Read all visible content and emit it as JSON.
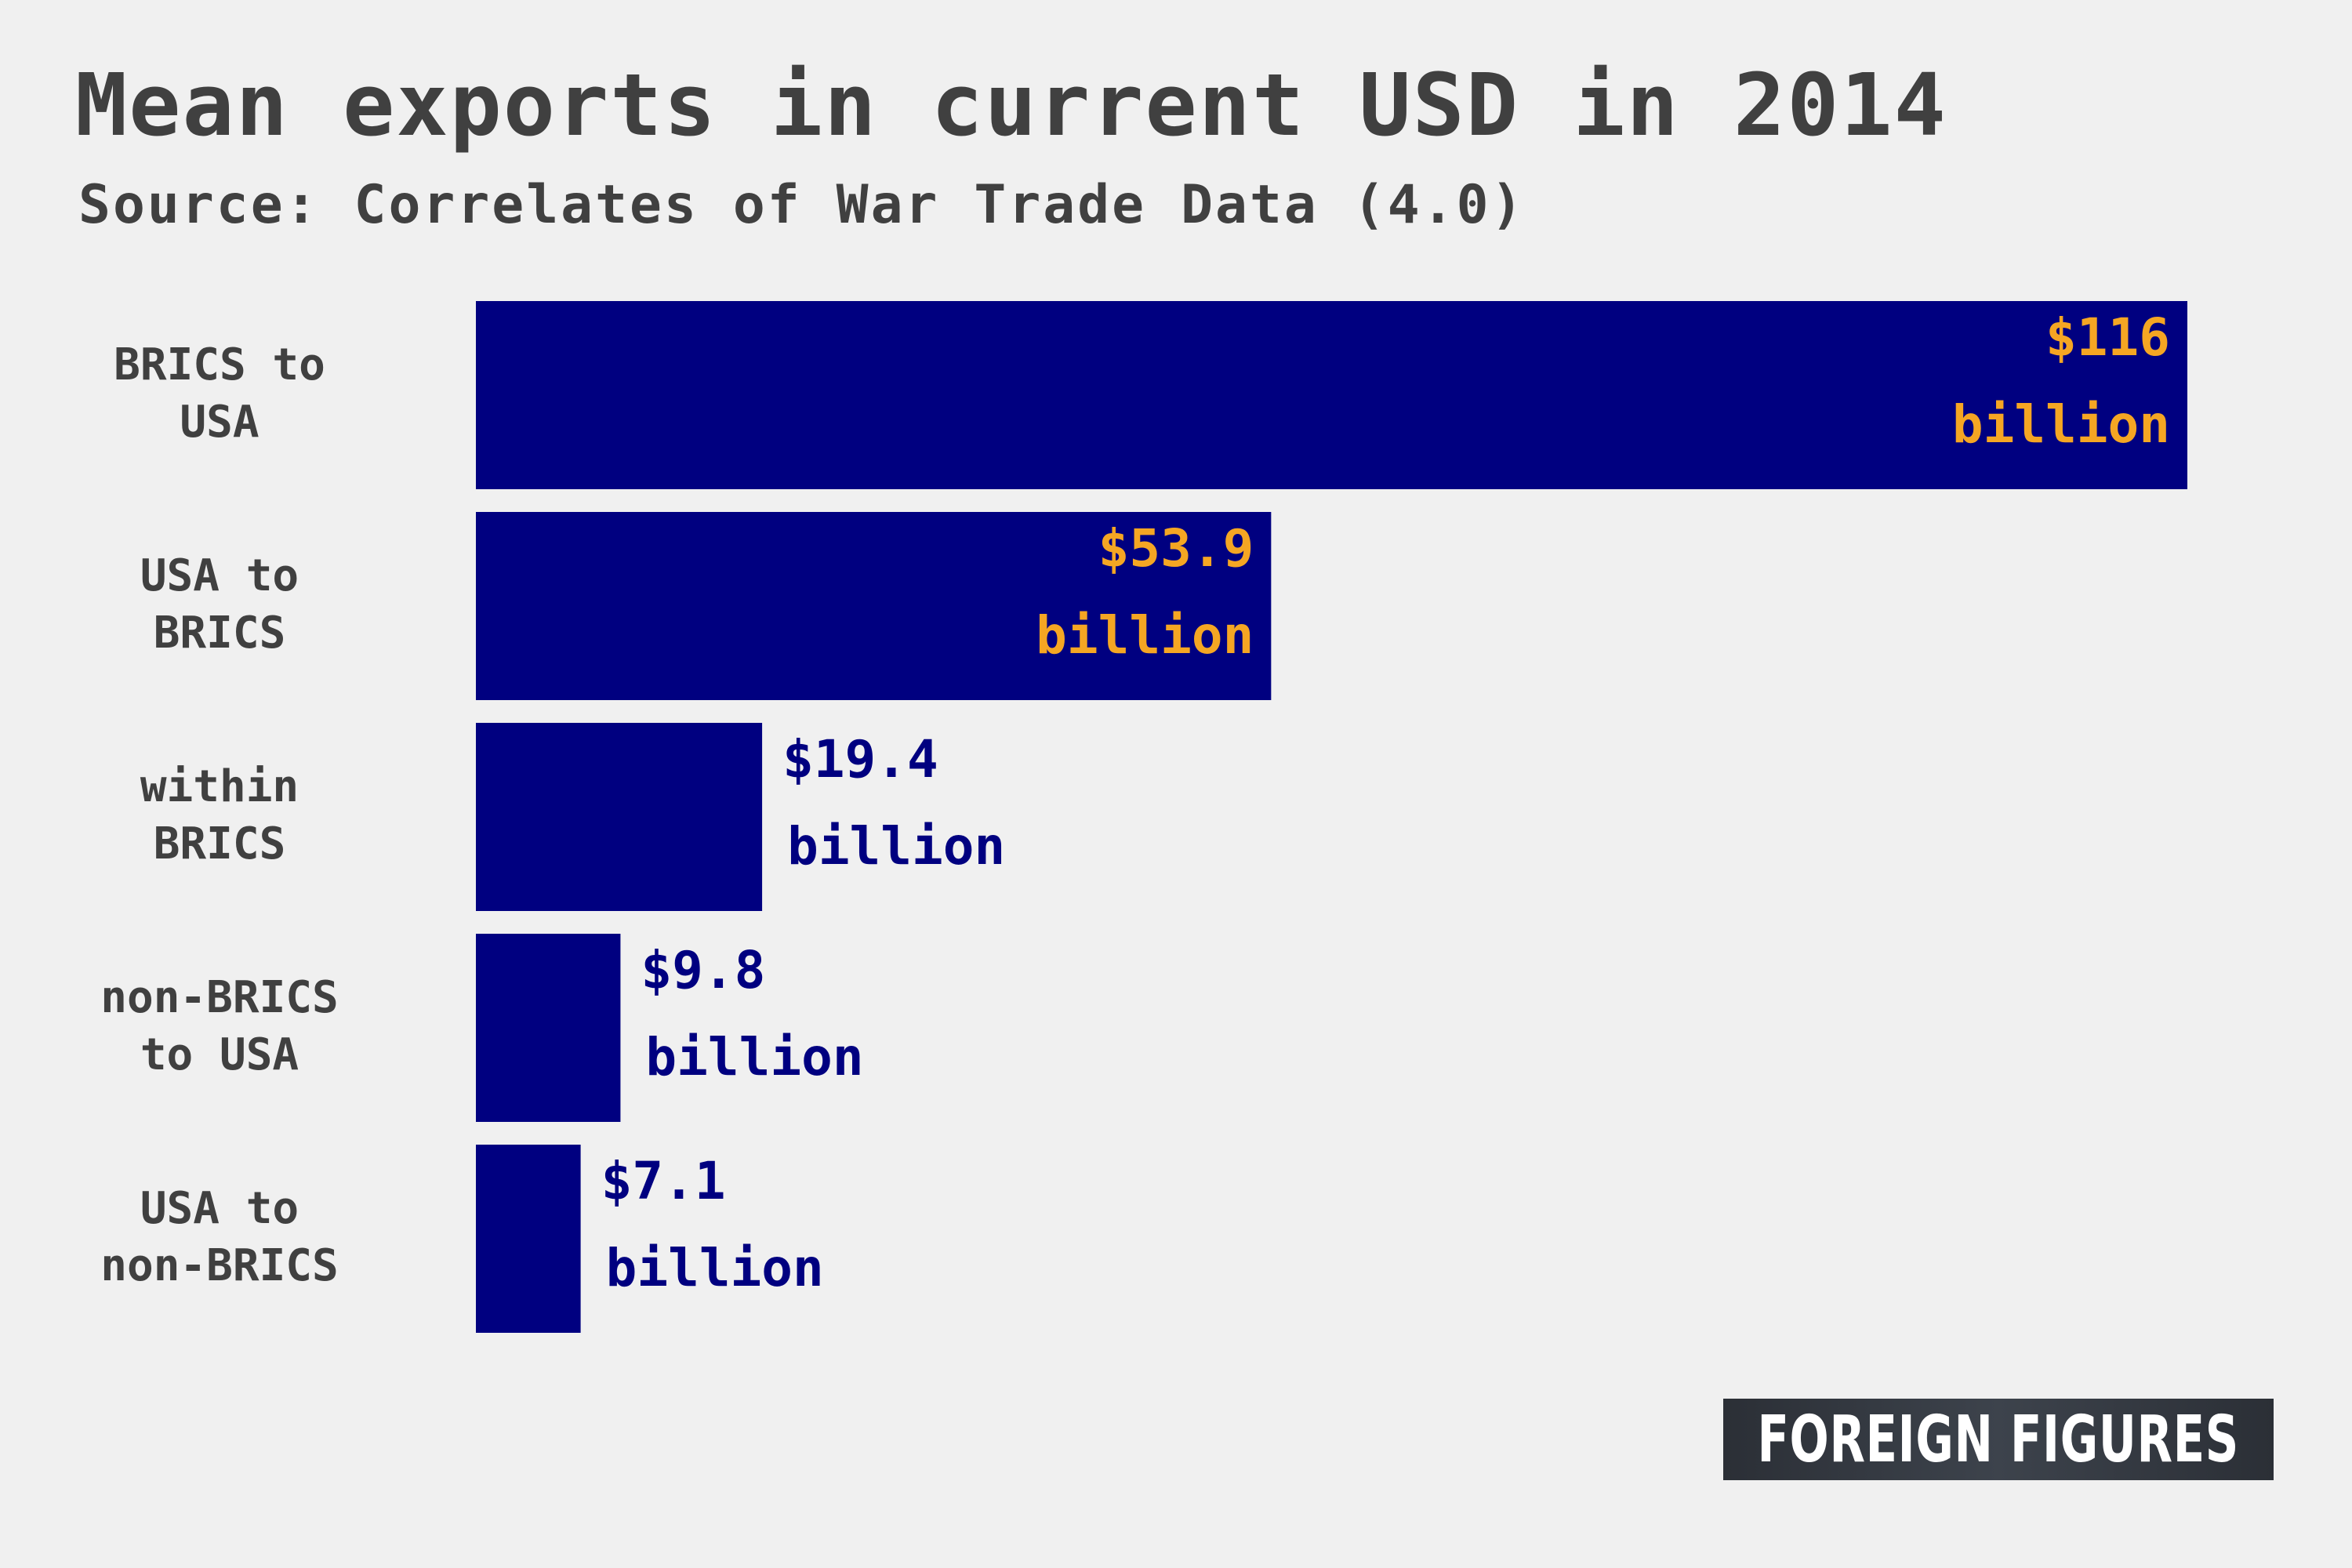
{
  "title": "Mean exports in current USD in 2014",
  "subtitle": "Source: Correlates of War Trade Data (4.0)",
  "branding": "FOREIGN FIGURES",
  "colors": {
    "bar": "#000080",
    "label_inside": "#f5a623",
    "label_outside": "#000080",
    "text": "#404040",
    "background": "#f0f0f0"
  },
  "chart_data": {
    "type": "bar",
    "orientation": "horizontal",
    "title": "Mean exports in current USD in 2014",
    "subtitle": "Source: Correlates of War Trade Data (4.0)",
    "unit": "billion USD",
    "categories": [
      [
        "BRICS to",
        "USA"
      ],
      [
        "USA to",
        "BRICS"
      ],
      [
        "within",
        "BRICS"
      ],
      [
        "non-BRICS",
        "to USA"
      ],
      [
        "USA to",
        "non-BRICS"
      ]
    ],
    "values": [
      116,
      53.9,
      19.4,
      9.8,
      7.1
    ],
    "value_labels": [
      [
        "$116",
        "billion"
      ],
      [
        "$53.9",
        "billion"
      ],
      [
        "$19.4",
        "billion"
      ],
      [
        "$9.8",
        "billion"
      ],
      [
        "$7.1",
        "billion"
      ]
    ],
    "label_placement": [
      "inside",
      "inside",
      "outside",
      "outside",
      "outside"
    ],
    "xlim": [
      0,
      116
    ],
    "grid": false,
    "legend": "none"
  }
}
